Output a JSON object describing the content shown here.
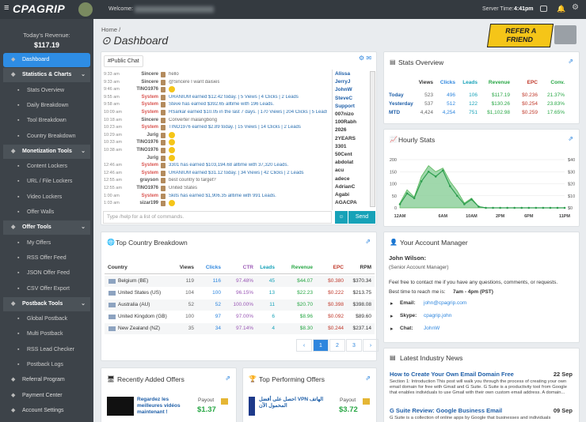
{
  "header": {
    "logo": "CPAGRIP",
    "welcome": "Welcome:",
    "server_time_label": "Server Time:",
    "server_time": "4:41pm"
  },
  "sidebar": {
    "revenue_label": "Today's Revenue:",
    "revenue": "$117.19",
    "items": [
      {
        "label": "Dashboard",
        "kind": "active"
      },
      {
        "label": "Statistics & Charts",
        "kind": "section"
      },
      {
        "label": "Stats Overview",
        "kind": "item"
      },
      {
        "label": "Daily Breakdown",
        "kind": "item"
      },
      {
        "label": "Tool Breakdown",
        "kind": "item"
      },
      {
        "label": "Country Breakdown",
        "kind": "item"
      },
      {
        "label": "Monetization Tools",
        "kind": "section"
      },
      {
        "label": "Content Lockers",
        "kind": "item"
      },
      {
        "label": "URL / File Lockers",
        "kind": "item"
      },
      {
        "label": "Video Lockers",
        "kind": "item"
      },
      {
        "label": "Offer Walls",
        "kind": "item"
      },
      {
        "label": "Offer Tools",
        "kind": "section"
      },
      {
        "label": "My Offers",
        "kind": "item"
      },
      {
        "label": "RSS Offer Feed",
        "kind": "item"
      },
      {
        "label": "JSON Offer Feed",
        "kind": "item"
      },
      {
        "label": "CSV Offer Export",
        "kind": "item"
      },
      {
        "label": "Postback Tools",
        "kind": "section"
      },
      {
        "label": "Global Postback",
        "kind": "item"
      },
      {
        "label": "Multi Postback",
        "kind": "item"
      },
      {
        "label": "RSS Lead Checker",
        "kind": "item"
      },
      {
        "label": "Postback Logs",
        "kind": "item"
      },
      {
        "label": "Referral Program",
        "kind": "top"
      },
      {
        "label": "Payment Center",
        "kind": "top"
      },
      {
        "label": "Account Settings",
        "kind": "top"
      }
    ]
  },
  "page": {
    "breadcrumb": "Home",
    "title": "Dashboard",
    "banner": "REFER A FRIEND"
  },
  "chat": {
    "tab": "#Public Chat",
    "messages": [
      {
        "time": "9:33 am",
        "user": "Sincere",
        "text": "hello"
      },
      {
        "time": "9:33 am",
        "user": "Sincere",
        "text": "@Sincere I want daisies"
      },
      {
        "time": "9:46 am",
        "user": "TINO1976"
      },
      {
        "time": "9:55 am",
        "user": "System",
        "text": "URANIUM earned $12.42 today. | 5 Views | 4 Clicks | 2 Leads"
      },
      {
        "time": "9:58 am",
        "user": "System",
        "text": "Steve has earned $392.65 alltime with 196 Leads."
      },
      {
        "time": "10:09 am",
        "user": "System",
        "text": "HSarkar earned $10.05 in the last 7 days. | 170 Views | 204 Clicks | 5 Leads"
      },
      {
        "time": "10:18 am",
        "user": "Sincere",
        "text": "Converter malangbong"
      },
      {
        "time": "10:23 am",
        "user": "System",
        "text": "TINO1976 earned $2.89 today. | 15 Views | 14 Clicks | 2 Leads"
      },
      {
        "time": "10:29 am",
        "user": "Jurig"
      },
      {
        "time": "10:33 am",
        "user": "TINO1976"
      },
      {
        "time": "10:38 am",
        "user": "TINO1976"
      },
      {
        "user": "Jurig"
      },
      {
        "time": "12:46 am",
        "user": "System",
        "text": "3301 has earned $103,194.68 alltime with 37,320 Leads."
      },
      {
        "time": "12:46 am",
        "user": "System",
        "text": "URANIUM earned $31.12 today. | 34 Views | 42 Clicks | 2 Leads"
      },
      {
        "time": "12:55 am",
        "user": "grayson",
        "text": "best country to target?"
      },
      {
        "time": "12:55 am",
        "user": "TINO1976",
        "text": "United States"
      },
      {
        "time": "1:00 am",
        "user": "System",
        "text": "Skits has earned $1,906.35 alltime with 991 Leads."
      },
      {
        "time": "1:03 am",
        "user": "sizar199"
      }
    ],
    "users": [
      "Alissa",
      "JerryJ",
      "JohnW",
      "SteveC",
      "Support",
      "007nizo",
      "100Rabh",
      "2026",
      "2YEARS",
      "3301",
      "50Cent",
      "abdolat",
      "acu",
      "adece",
      "AdrianC",
      "Agabi",
      "AGACPA"
    ],
    "placeholder": "Type /help for a list of commands.",
    "send": "Send"
  },
  "stats_overview": {
    "title": "Stats Overview",
    "columns": [
      "Views",
      "Clicks",
      "Leads",
      "Revenue",
      "EPC",
      "Conv."
    ],
    "rows": [
      [
        "Today",
        "523",
        "496",
        "106",
        "$117.19",
        "$0.236",
        "21.37%"
      ],
      [
        "Yesterday",
        "537",
        "512",
        "122",
        "$130.26",
        "$0.254",
        "23.83%"
      ],
      [
        "MTD",
        "4,424",
        "4,254",
        "751",
        "$1,102.98",
        "$0.259",
        "17.65%"
      ]
    ]
  },
  "hourly_stats": {
    "title": "Hourly Stats",
    "x": [
      0,
      1,
      2,
      3,
      4,
      5,
      6,
      7,
      8,
      9,
      10,
      11,
      12,
      13,
      14,
      15,
      16,
      17,
      18,
      19,
      20,
      21,
      22,
      23
    ],
    "xlim": [
      0,
      23
    ],
    "xticks": [
      {
        "value": 0,
        "label": "12AM"
      },
      {
        "value": 6,
        "label": "6AM"
      },
      {
        "value": 10,
        "label": "10AM"
      },
      {
        "value": 14,
        "label": "2PM"
      },
      {
        "value": 18,
        "label": "6PM"
      },
      {
        "value": 23,
        "label": "11PM"
      }
    ],
    "ylim": [
      0,
      200
    ],
    "yticks": [
      0,
      50,
      100,
      150,
      200
    ],
    "y2lim": [
      0,
      40
    ],
    "y2ticks": [
      {
        "value": 0,
        "label": "$0"
      },
      {
        "value": 10,
        "label": "$10"
      },
      {
        "value": 20,
        "label": "$20"
      },
      {
        "value": 30,
        "label": "$30"
      },
      {
        "value": 40,
        "label": "$40"
      }
    ],
    "series": [
      {
        "color": "#8fd19e",
        "values": [
          20,
          75,
          45,
          130,
          175,
          150,
          165,
          110,
          70,
          20,
          40,
          5,
          0,
          0,
          0,
          0,
          0,
          0,
          0,
          0,
          0,
          0,
          0,
          0
        ]
      },
      {
        "axis": "y2",
        "color": "#2e9e4f",
        "values": [
          3,
          12,
          8,
          22,
          30,
          26,
          31,
          18,
          10,
          3,
          7,
          1,
          0,
          0,
          0,
          0,
          0,
          0,
          0,
          0,
          0,
          0,
          0,
          0
        ]
      }
    ],
    "grid": true
  },
  "country": {
    "title": "Top Country Breakdown",
    "columns": [
      "Country",
      "Views",
      "Clicks",
      "CTR",
      "Leads",
      "Revenue",
      "EPC",
      "RPM"
    ],
    "rows": [
      [
        "Belgium (BE)",
        "119",
        "116",
        "97.48%",
        "45",
        "$44.07",
        "$0.380",
        "$370.34"
      ],
      [
        "United States (US)",
        "104",
        "100",
        "96.15%",
        "13",
        "$22.23",
        "$0.222",
        "$213.75"
      ],
      [
        "Australia (AU)",
        "52",
        "52",
        "100.00%",
        "11",
        "$20.70",
        "$0.398",
        "$398.08"
      ],
      [
        "United Kingdom (GB)",
        "100",
        "97",
        "97.00%",
        "6",
        "$8.96",
        "$0.092",
        "$89.60"
      ],
      [
        "New Zealand (NZ)",
        "35",
        "34",
        "97.14%",
        "4",
        "$8.30",
        "$0.244",
        "$237.14"
      ]
    ],
    "pages": [
      "1",
      "2",
      "3"
    ]
  },
  "manager": {
    "title": "Your Account Manager",
    "name": "John Wilson:",
    "role": "(Senior Account Manager)",
    "intro": "Feel free to contact me if you have any questions, comments, or requests.",
    "hours_label": "Best time to reach me is:",
    "hours": "7am - 4pm (PST)",
    "contacts": [
      {
        "label": "Email:",
        "value": "john@cpagrip.com"
      },
      {
        "label": "Skype:",
        "value": "cpagrip.john"
      },
      {
        "label": "Chat:",
        "value": "JohnW"
      }
    ]
  },
  "recent_offers": {
    "title": "Recently Added Offers",
    "offer": "Regardez les meilleures vidéos maintenant !",
    "payout_label": "Payout",
    "payout": "$1.37"
  },
  "top_offers": {
    "title": "Top Performing Offers",
    "offer": "احصل على أفضل VPN الهاتف المحمول الآن",
    "payout_label": "Payout",
    "payout": "$3.72"
  },
  "news": {
    "title": "Latest Industry News",
    "items": [
      {
        "title": "How to Create Your Own Email Domain Free",
        "date": "22 Sep",
        "summary": "Section 1: Introduction This post will walk you through the process of creating your own email domain for free with Gmail and G Suite. G Suite is a productivity tool from Google that enables individuals to use Gmail with their own custom email address. A domain..."
      },
      {
        "title": "G Suite Review: Google Business Email",
        "date": "09 Sep",
        "summary": "G Suite is a collection of online apps by Google that businesses and individuals"
      }
    ]
  }
}
